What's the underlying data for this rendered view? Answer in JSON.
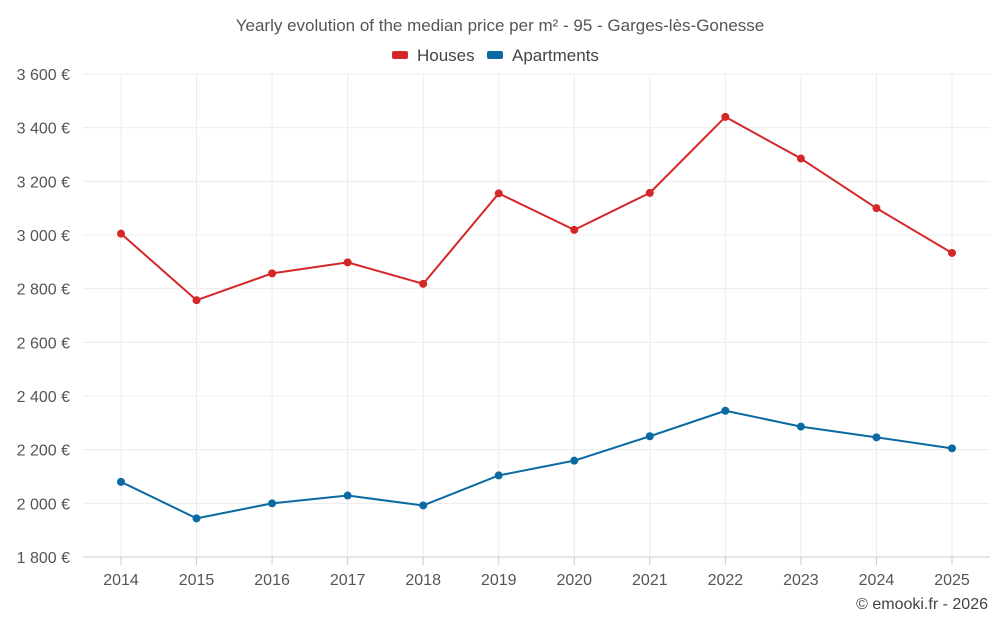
{
  "chart_data": {
    "type": "line",
    "title": "Yearly evolution of the median price per m² - 95 - Garges-lès-Gonesse",
    "categories": [
      "2014",
      "2015",
      "2016",
      "2017",
      "2018",
      "2019",
      "2020",
      "2021",
      "2022",
      "2023",
      "2024",
      "2025"
    ],
    "series": [
      {
        "name": "Houses",
        "color": "#d62728",
        "values": [
          3005,
          2757,
          2857,
          2898,
          2818,
          3155,
          3019,
          3157,
          3440,
          3285,
          3100,
          2933
        ]
      },
      {
        "name": "Apartments",
        "color": "#0b6aa2",
        "values": [
          2080,
          1944,
          2000,
          2029,
          1992,
          2104,
          2159,
          2250,
          2345,
          2286,
          2246,
          2205
        ]
      }
    ],
    "ylim": [
      1800,
      3600
    ],
    "yticks": [
      1800,
      2000,
      2200,
      2400,
      2600,
      2800,
      3000,
      3200,
      3400,
      3600
    ],
    "ytick_labels": [
      "1 800 €",
      "2 000 €",
      "2 200 €",
      "2 400 €",
      "2 600 €",
      "2 800 €",
      "3 000 €",
      "3 200 €",
      "3 400 €",
      "3 600 €"
    ],
    "grid": true,
    "legend_position": "top-center",
    "xlabel": "",
    "ylabel": ""
  },
  "credit": "© emooki.fr - 2026"
}
